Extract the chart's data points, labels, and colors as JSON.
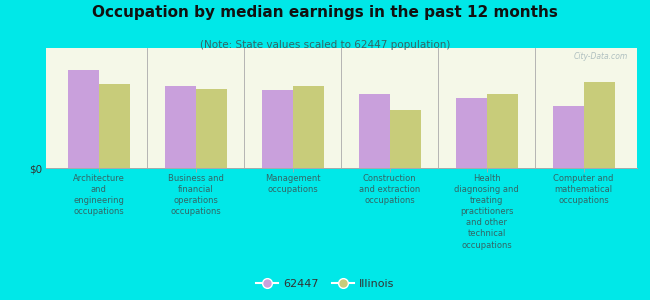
{
  "title": "Occupation by median earnings in the past 12 months",
  "subtitle": "(Note: State values scaled to 62447 population)",
  "categories": [
    "Architecture\nand\nengineering\noccupations",
    "Business and\nfinancial\noperations\noccupations",
    "Management\noccupations",
    "Construction\nand extraction\noccupations",
    "Health\ndiagnosing and\ntreating\npractitioners\nand other\ntechnical\noccupations",
    "Computer and\nmathematical\noccupations"
  ],
  "values_62447": [
    82,
    68,
    65,
    62,
    58,
    52
  ],
  "values_illinois": [
    70,
    66,
    68,
    48,
    62,
    72
  ],
  "color_62447": "#c9a0dc",
  "color_illinois": "#c8cc7a",
  "background_color": "#00e8e8",
  "chart_bg_top": "#f5f8e8",
  "chart_bg_bottom": "#e8f0d0",
  "ylabel": "$0",
  "bar_width": 0.32,
  "legend_label_62447": "62447",
  "legend_label_illinois": "Illinois",
  "watermark": "City-Data.com",
  "title_color": "#111111",
  "subtitle_color": "#336666",
  "xlabel_color": "#336666"
}
